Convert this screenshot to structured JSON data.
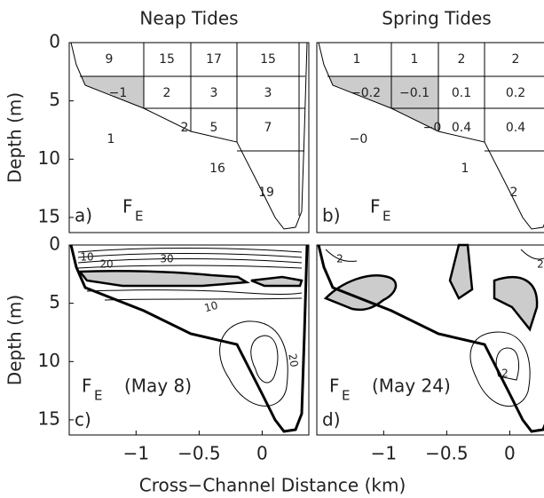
{
  "xlabel": "Cross−Channel Distance (km)",
  "chart_data": [
    {
      "type": "grid",
      "title": "Neap Tides",
      "panel_label": "a)",
      "symbol": "F",
      "subscript": "E",
      "ylabel": "Depth (m)",
      "xlim": [
        -1.53,
        0.37
      ],
      "ylim": [
        0,
        16.3
      ],
      "yticks": [
        0,
        5,
        10,
        15
      ],
      "rows": [
        [
          "9",
          "15",
          "17",
          "15"
        ],
        [
          "−1",
          "2",
          "3",
          "3"
        ],
        [
          "1",
          "2",
          "5",
          "7"
        ],
        [
          null,
          null,
          "16",
          "19"
        ]
      ]
    },
    {
      "type": "grid",
      "title": "Spring Tides",
      "panel_label": "b)",
      "symbol": "F",
      "subscript": "E",
      "xlim": [
        -1.53,
        0.37
      ],
      "ylim": [
        0,
        16.3
      ],
      "rows": [
        [
          "1",
          "1",
          "2",
          "2"
        ],
        [
          "−0.2",
          "−0.1",
          "0.1",
          "0.2"
        ],
        [
          "−0",
          "−0",
          "0.4",
          "0.4"
        ],
        [
          null,
          null,
          "1",
          "2"
        ]
      ]
    },
    {
      "type": "contour",
      "panel_label": "c)",
      "symbol": "F",
      "subscript": "E",
      "date": "(May 8)",
      "ylabel": "Depth (m)",
      "xlim": [
        -1.53,
        0.37
      ],
      "ylim": [
        0,
        16.3
      ],
      "yticks": [
        0,
        5,
        10,
        15
      ],
      "xticks": [
        {
          "value": -1,
          "label": "−1"
        },
        {
          "value": -0.5,
          "label": "−0.5"
        },
        0
      ],
      "contour_labels": [
        "10",
        "20",
        "30",
        "10",
        "20"
      ]
    },
    {
      "type": "contour",
      "panel_label": "d)",
      "symbol": "F",
      "subscript": "E",
      "date": "(May 24)",
      "xlim": [
        -1.53,
        0.37
      ],
      "ylim": [
        0,
        16.3
      ],
      "xticks": [
        {
          "value": -1,
          "label": "−1"
        },
        {
          "value": -0.5,
          "label": "−0.5"
        },
        0
      ],
      "contour_labels": [
        "2",
        "2",
        "2"
      ]
    }
  ]
}
